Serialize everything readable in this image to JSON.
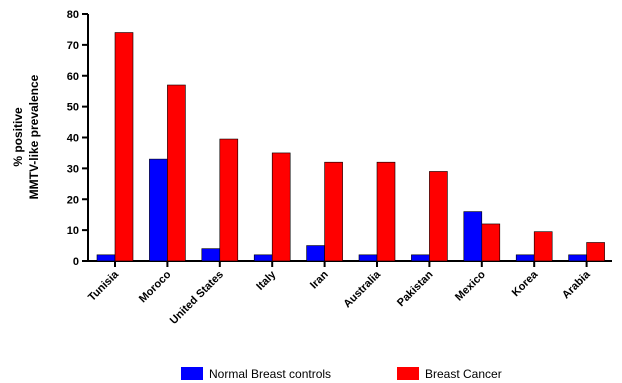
{
  "chart_data": {
    "type": "bar",
    "categories": [
      "Tunisia",
      "Moroco",
      "United States",
      "Italy",
      "Iran",
      "Australia",
      "Pakistan",
      "Mexico",
      "Korea",
      "Arabia"
    ],
    "series": [
      {
        "name": "Normal Breast controls",
        "color": "#0000ff",
        "values": [
          2,
          33,
          4,
          2,
          5,
          2,
          2,
          16,
          2,
          2
        ]
      },
      {
        "name": "Breast Cancer",
        "color": "#ff0000",
        "values": [
          74,
          57,
          39.5,
          35,
          32,
          32,
          29,
          12,
          9.5,
          6
        ]
      }
    ],
    "title": "",
    "xlabel": "",
    "ylabel_lines": [
      "% positive",
      "MMTV-like prevalence"
    ],
    "ylim": [
      0,
      80
    ],
    "yticks": [
      0,
      10,
      20,
      30,
      40,
      50,
      60,
      70,
      80
    ],
    "grid": false,
    "legend_position": "bottom-center"
  }
}
